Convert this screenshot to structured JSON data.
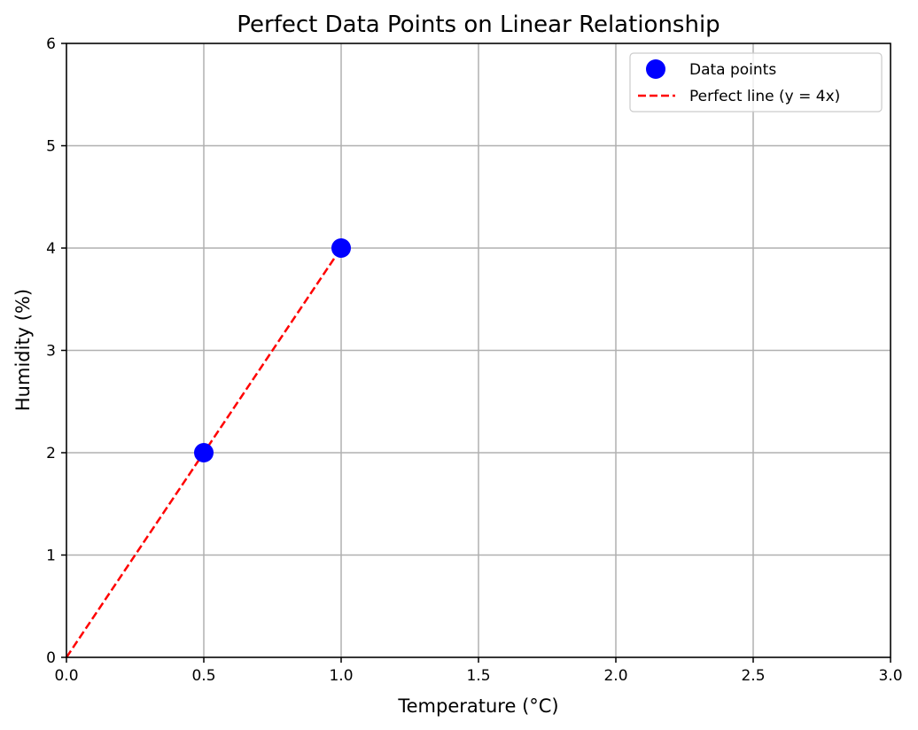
{
  "chart_data": {
    "type": "scatter",
    "title": "Perfect Data Points on Linear Relationship",
    "xlabel": "Temperature (°C)",
    "ylabel": "Humidity (%)",
    "xlim": [
      0,
      3
    ],
    "ylim": [
      0,
      6
    ],
    "xticks": [
      "0.0",
      "0.5",
      "1.0",
      "1.5",
      "2.0",
      "2.5",
      "3.0"
    ],
    "yticks": [
      "0",
      "1",
      "2",
      "3",
      "4",
      "5",
      "6"
    ],
    "grid": true,
    "legend_position": "top-right",
    "series": [
      {
        "name": "Data points",
        "type": "scatter",
        "color": "#0000ff",
        "marker": "circle",
        "x": [
          0.5,
          1.0
        ],
        "y": [
          2,
          4
        ]
      },
      {
        "name": "Perfect line (y = 4x)",
        "type": "line",
        "color": "#ff0000",
        "linestyle": "dashed",
        "x": [
          0,
          1.0
        ],
        "y": [
          0,
          4
        ]
      }
    ]
  }
}
